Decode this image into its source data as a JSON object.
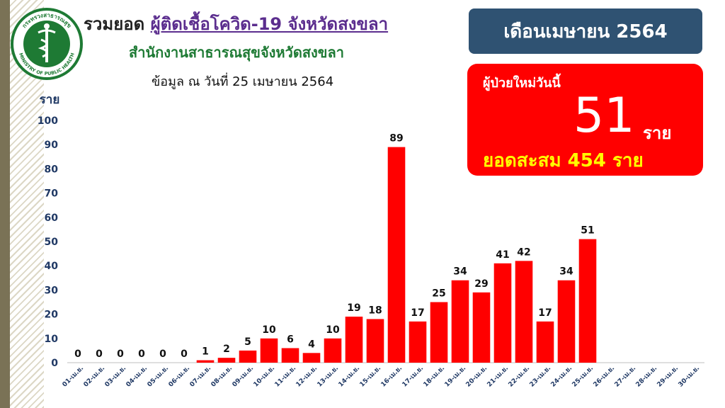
{
  "header": {
    "title_prefix": "รวมยอด",
    "title_highlight": "ผู้ติดเชื้อโควิด-19 จังหวัดสงขลา",
    "subtitle": "สำนักงานสาธารณสุขจังหวัดสงขลา",
    "date_text": "ข้อมูล ณ วันที่  25  เมษายน 2564",
    "month_label": "เดือนเมษายน 2564"
  },
  "logo": {
    "top_text": "กระทรวงสาธารณสุข",
    "bottom_text": "MINISTRY OF PUBLIC HEALTH"
  },
  "summary": {
    "new_label": "ผู้ป่วยใหม่วันนี้",
    "new_value": "51",
    "new_unit": "ราย",
    "total_text": "ยอดสะสม 454 ราย"
  },
  "colors": {
    "bar": "#ff0000",
    "month_box": "#2f5272",
    "accent_title": "#5b2d8e",
    "subtitle": "#1e7a34",
    "axis_text": "#1f3864",
    "total_text": "#ffff00"
  },
  "chart_data": {
    "type": "bar",
    "ylabel": "ราย",
    "ylim": [
      0,
      100
    ],
    "yticks": [
      0,
      10,
      20,
      30,
      40,
      50,
      60,
      70,
      80,
      90,
      100
    ],
    "grid": false,
    "categories": [
      "01-เม.ย.",
      "02-เม.ย.",
      "03-เม.ย.",
      "04-เม.ย.",
      "05-เม.ย.",
      "06-เม.ย.",
      "07-เม.ย.",
      "08-เม.ย.",
      "09-เม.ย.",
      "10-เม.ย.",
      "11-เม.ย.",
      "12-เม.ย.",
      "13-เม.ย.",
      "14-เม.ย.",
      "15-เม.ย.",
      "16-เม.ย.",
      "17-เม.ย.",
      "18-เม.ย.",
      "19-เม.ย.",
      "20-เม.ย.",
      "21-เม.ย.",
      "22-เม.ย.",
      "23-เม.ย.",
      "24-เม.ย.",
      "25-เม.ย.",
      "26-เม.ย.",
      "27-เม.ย.",
      "28-เม.ย.",
      "29-เม.ย.",
      "30-เม.ย."
    ],
    "values": [
      0,
      0,
      0,
      0,
      0,
      0,
      1,
      2,
      5,
      10,
      6,
      4,
      10,
      19,
      18,
      89,
      17,
      25,
      34,
      29,
      41,
      42,
      17,
      34,
      51,
      null,
      null,
      null,
      null,
      null
    ]
  }
}
